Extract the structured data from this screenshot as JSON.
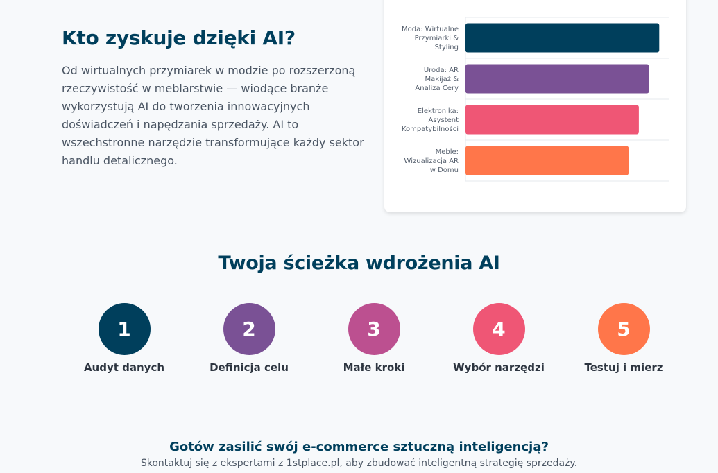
{
  "intro": {
    "title": "Kto zyskuje dzięki AI?",
    "text": "Od wirtualnych przymiarek w modzie po rozszerzoną rzeczywistość w meblarstwie — wiodące branże wykorzystują AI do tworzenia innowacyjnych doświadczeń i napędzania sprzedaży. AI to wszechstronne narzędzie transformujące każdy sektor handlu detalicznego."
  },
  "chart_data": {
    "type": "bar",
    "orientation": "horizontal",
    "categories": [
      [
        "Moda: Wirtualne",
        "Przymiarki &",
        "Styling"
      ],
      [
        "Uroda: AR",
        "Makijaż &",
        "Analiza Cery"
      ],
      [
        "Elektronika:",
        "Asystent",
        "Kompatybilności"
      ],
      [
        "Meble:",
        "Wizualizacja AR",
        "w Domu"
      ]
    ],
    "values": [
      95,
      90,
      85,
      80
    ],
    "colors": [
      "#003f5c",
      "#7a5195",
      "#ef5675",
      "#ff764a"
    ],
    "xlim": [
      0,
      100
    ],
    "grid": true,
    "legend": "none"
  },
  "path": {
    "title": "Twoja ścieżka wdrożenia AI",
    "steps": [
      {
        "number": "1",
        "label": "Audyt danych",
        "color": "#003f5c"
      },
      {
        "number": "2",
        "label": "Definicja celu",
        "color": "#7a5195"
      },
      {
        "number": "3",
        "label": "Małe kroki",
        "color": "#bc5090"
      },
      {
        "number": "4",
        "label": "Wybór narzędzi",
        "color": "#ef5675"
      },
      {
        "number": "5",
        "label": "Testuj i mierz",
        "color": "#ff764a"
      }
    ]
  },
  "cta": {
    "title": "Gotów zasilić swój e-commerce sztuczną inteligencją?",
    "text": "Skontaktuj się z ekspertami z 1stplace.pl, aby zbudować inteligentną strategię sprzedaży."
  }
}
